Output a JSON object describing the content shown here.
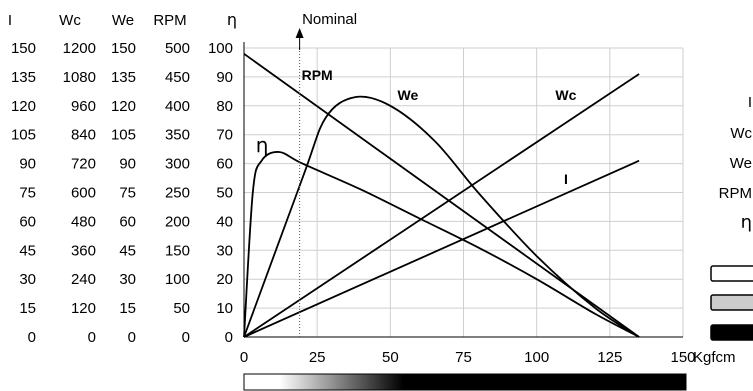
{
  "chart_data": {
    "type": "line",
    "x": {
      "ticks": [
        0,
        25,
        50,
        75,
        100,
        125,
        150
      ],
      "ticks_text": [
        "0",
        "25",
        "50",
        "75",
        "100",
        "125",
        "150"
      ],
      "unit": "Kgfcm",
      "lim": [
        0,
        150
      ]
    },
    "y_axes": [
      {
        "header": "I",
        "ticks": [
          "150",
          "135",
          "120",
          "105",
          "90",
          "75",
          "60",
          "45",
          "30",
          "15",
          "0"
        ]
      },
      {
        "header": "Wc",
        "ticks": [
          "1200",
          "1080",
          "960",
          "840",
          "720",
          "600",
          "480",
          "360",
          "240",
          "120",
          "0"
        ]
      },
      {
        "header": "We",
        "ticks": [
          "150",
          "135",
          "120",
          "105",
          "90",
          "75",
          "60",
          "45",
          "30",
          "15",
          "0"
        ]
      },
      {
        "header": "RPM",
        "ticks": [
          "500",
          "450",
          "400",
          "350",
          "300",
          "250",
          "200",
          "150",
          "100",
          "50",
          "0"
        ]
      },
      {
        "header": "η",
        "ticks": [
          "100",
          "90",
          "80",
          "70",
          "60",
          "50",
          "40",
          "30",
          "20",
          "10",
          "0"
        ]
      }
    ],
    "ylim": [
      0,
      100
    ],
    "grid": true,
    "nominal": {
      "label": "Nominal",
      "x": 19
    },
    "series": [
      {
        "name": "RPM",
        "points": [
          [
            0,
            98
          ],
          [
            135,
            0
          ]
        ]
      },
      {
        "name": "I",
        "points": [
          [
            0,
            0
          ],
          [
            135,
            61
          ]
        ]
      },
      {
        "name": "Wc",
        "points": [
          [
            0,
            0
          ],
          [
            135,
            91
          ]
        ]
      },
      {
        "name": "We",
        "points": [
          [
            0,
            0
          ],
          [
            20,
            55
          ],
          [
            28,
            76
          ],
          [
            38,
            83
          ],
          [
            50,
            80
          ],
          [
            65,
            68
          ],
          [
            80,
            50
          ],
          [
            100,
            28
          ],
          [
            120,
            10
          ],
          [
            135,
            0
          ]
        ]
      },
      {
        "name": "η",
        "points": [
          [
            0,
            0
          ],
          [
            3,
            50
          ],
          [
            6,
            61
          ],
          [
            12,
            64
          ],
          [
            20,
            60
          ],
          [
            40,
            51
          ],
          [
            60,
            41
          ],
          [
            80,
            31
          ],
          [
            100,
            20
          ],
          [
            120,
            8
          ],
          [
            135,
            0
          ]
        ]
      }
    ],
    "legend": {
      "items": [
        "I",
        "Wc",
        "We",
        "RPM",
        "η"
      ],
      "swatch_colors": [
        "#ffffff",
        "#cccccc",
        "#000000"
      ]
    },
    "colorbar": {
      "stops": [
        "#ffffff",
        "#000000"
      ]
    }
  }
}
